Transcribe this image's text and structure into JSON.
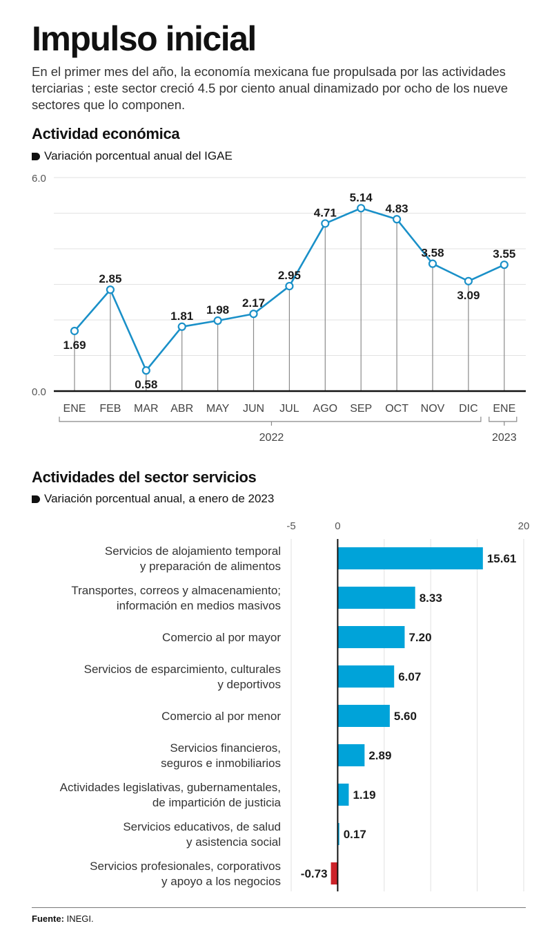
{
  "header": {
    "title": "Impulso inicial",
    "intro": "En el primer mes del año, la economía mexicana fue propulsada por las actividades terciarias ; este sector creció 4.5 por ciento anual dinamizado por ocho de los nueve sectores que lo componen."
  },
  "colors": {
    "line": "#1a90c8",
    "bar_positive": "#00a3d9",
    "bar_negative": "#cc2229",
    "axis": "#111111",
    "grid": "#e2e2e2",
    "stem": "#8a8a8a"
  },
  "footer": {
    "source_label": "Fuente:",
    "source_value": "INEGI."
  },
  "chart_data": [
    {
      "type": "line",
      "title": "Actividad económica",
      "subtitle": "Variación porcentual anual del IGAE",
      "xlabel": "",
      "ylabel": "",
      "ylim": [
        0,
        6
      ],
      "ytick_labels": [
        "0.0",
        "6.0"
      ],
      "grid_values": [
        0,
        1,
        2,
        3,
        4,
        5,
        6
      ],
      "grid": true,
      "categories": [
        "ENE",
        "FEB",
        "MAR",
        "ABR",
        "MAY",
        "JUN",
        "JUL",
        "AGO",
        "SEP",
        "OCT",
        "NOV",
        "DIC",
        "ENE"
      ],
      "values": [
        1.69,
        2.85,
        0.58,
        1.81,
        1.98,
        2.17,
        2.95,
        4.71,
        5.14,
        4.83,
        3.58,
        3.09,
        3.55
      ],
      "data_labels": [
        "1.69",
        "2.85",
        "0.58",
        "1.81",
        "1.98",
        "2.17",
        "2.95",
        "4.71",
        "5.14",
        "4.83",
        "3.58",
        "3.09",
        "3.55"
      ],
      "label_below": [
        true,
        false,
        true,
        false,
        false,
        false,
        false,
        false,
        false,
        false,
        false,
        true,
        false
      ],
      "year_groups": [
        {
          "label": "2022",
          "from": 0,
          "to": 11
        },
        {
          "label": "2023",
          "from": 12,
          "to": 12
        }
      ]
    },
    {
      "type": "bar",
      "orientation": "horizontal",
      "title": "Actividades del sector servicios",
      "subtitle": "Variación porcentual anual, a enero de 2023",
      "xlim": [
        -5,
        20
      ],
      "xtick_labels": [
        {
          "value": -5,
          "label": "-5"
        },
        {
          "value": 0,
          "label": "0"
        },
        {
          "value": 20,
          "label": "20"
        }
      ],
      "grid_values": [
        -5,
        5,
        10,
        15,
        20
      ],
      "grid": true,
      "categories": [
        [
          "Servicios de alojamiento temporal",
          "y preparación de alimentos"
        ],
        [
          "Transportes, correos y almacenamiento;",
          "información en medios masivos"
        ],
        [
          "Comercio al por mayor"
        ],
        [
          "Servicios de esparcimiento, culturales",
          "y deportivos"
        ],
        [
          "Comercio al por menor"
        ],
        [
          "Servicios financieros,",
          "seguros e inmobiliarios"
        ],
        [
          "Actividades legislativas, gubernamentales,",
          "de impartición de justicia"
        ],
        [
          "Servicios educativos, de salud",
          "y asistencia social"
        ],
        [
          "Servicios profesionales, corporativos",
          "y apoyo a los negocios"
        ]
      ],
      "values": [
        15.61,
        8.33,
        7.2,
        6.07,
        5.6,
        2.89,
        1.19,
        0.17,
        -0.73
      ],
      "data_labels": [
        "15.61",
        "8.33",
        "7.20",
        "6.07",
        "5.60",
        "2.89",
        "1.19",
        "0.17",
        "-0.73"
      ]
    }
  ]
}
